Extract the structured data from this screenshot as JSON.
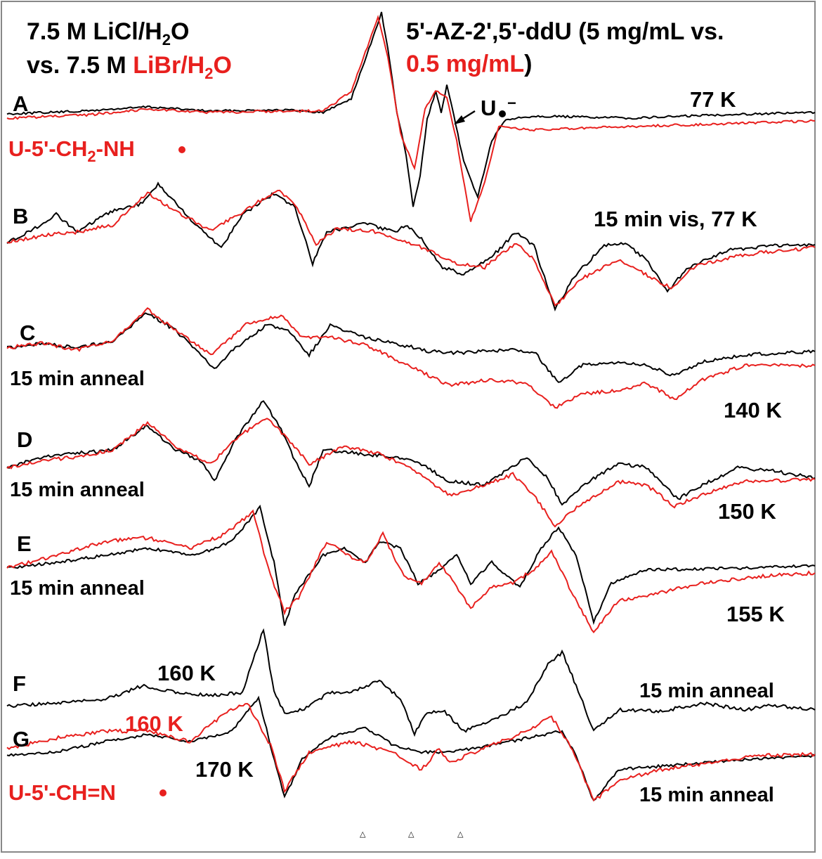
{
  "colors": {
    "black": "#000000",
    "red": "#e8201e",
    "frame": "#888888"
  },
  "header": {
    "left_line1": "7.5 M LiCl/H",
    "left_line1_sub": "2",
    "left_line1_end": "O",
    "left_line2_black": "vs. 7.5 M ",
    "left_line2_red": "LiBr/H",
    "left_line2_red_sub": "2",
    "left_line2_red_end": "O",
    "right_line1": "5'-AZ-2',5'-ddU (5 mg/mL vs.",
    "right_line2_red": "0.5 mg/mL",
    "right_line2_black": ")"
  },
  "annotations": {
    "radical_anion": "U",
    "radical_anion_sup": "−",
    "aminyl": "U-5'-CH",
    "aminyl_sub": "2",
    "aminyl_end": "-NH",
    "iminyl": "U-5'-CH=N"
  },
  "chart_data": {
    "type": "line",
    "description": "Stacked ESR spectra (first derivative), black = LiCl/H2O 5 mg/mL, red = LiBr/H2O 0.5 mg/mL",
    "series_names": [
      "7.5 M LiCl/H2O",
      "7.5 M LiBr/H2O"
    ],
    "panels": [
      {
        "id": "A",
        "left": "",
        "right": "77 K"
      },
      {
        "id": "B",
        "left": "",
        "right": "15 min vis, 77 K"
      },
      {
        "id": "C",
        "left": "15 min anneal",
        "right": "140 K"
      },
      {
        "id": "D",
        "left": "15 min anneal",
        "right": "150 K"
      },
      {
        "id": "E",
        "left": "15 min anneal",
        "right": "155 K"
      },
      {
        "id": "F",
        "left": "160 K",
        "right": "15 min anneal"
      },
      {
        "id": "G",
        "left": "170 K",
        "left_red": "160 K",
        "right": "15 min anneal"
      }
    ],
    "markers": [
      "△",
      "△",
      "△"
    ]
  }
}
